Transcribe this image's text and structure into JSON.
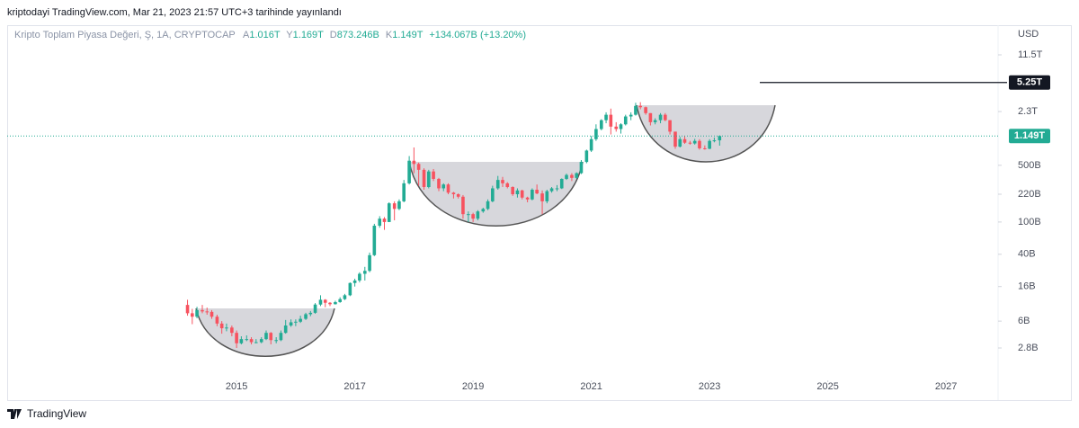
{
  "header": {
    "text": "kriptodayi TradingView.com, Mar 21, 2023 21:57 UTC+3 tarihinde yayınlandı"
  },
  "footer": {
    "brand": "TradingView"
  },
  "chart_data": {
    "type": "candlestick",
    "title": "Kripto Toplam Piyasa Değeri, Ş, 1A, CRYPTOCAP",
    "ohlc_legend": [
      {
        "key": "A",
        "text": "1.016T"
      },
      {
        "key": "Y",
        "text": "1.169T"
      },
      {
        "key": "D",
        "text": "873.246B"
      },
      {
        "key": "K",
        "text": "1.149T"
      }
    ],
    "change_label": "+134.067B (+13.20%)",
    "y_axis_label": "USD",
    "log_y": true,
    "up_color": "#22ab94",
    "down_color": "#f7525f",
    "xlim": [
      2011.12,
      2027.88
    ],
    "xticks": [
      2015,
      2017,
      2019,
      2021,
      2023,
      2025,
      2027
    ],
    "ylim": [
      1.37,
      26700
    ],
    "yticks": [
      {
        "value": 11500,
        "label": "11.5T"
      },
      {
        "value": 2300,
        "label": "2.3T"
      },
      {
        "value": 500,
        "label": "500B"
      },
      {
        "value": 220,
        "label": "220B"
      },
      {
        "value": 100,
        "label": "100B"
      },
      {
        "value": 40,
        "label": "40B"
      },
      {
        "value": 16,
        "label": "16B"
      },
      {
        "value": 6,
        "label": "6B"
      },
      {
        "value": 2.8,
        "label": "2.8B"
      }
    ],
    "horizontal_line": {
      "value": 5250,
      "label": "5.25T"
    },
    "last_price": {
      "value": 1149,
      "label": "1.149T"
    },
    "x": [
      2014.17,
      2014.25,
      2014.33,
      2014.42,
      2014.5,
      2014.58,
      2014.67,
      2014.75,
      2014.83,
      2014.92,
      2015.0,
      2015.08,
      2015.17,
      2015.25,
      2015.33,
      2015.42,
      2015.5,
      2015.58,
      2015.67,
      2015.75,
      2015.83,
      2015.92,
      2016.0,
      2016.08,
      2016.17,
      2016.25,
      2016.33,
      2016.42,
      2016.5,
      2016.58,
      2016.67,
      2016.75,
      2016.83,
      2016.92,
      2017.0,
      2017.08,
      2017.17,
      2017.25,
      2017.33,
      2017.42,
      2017.5,
      2017.58,
      2017.67,
      2017.75,
      2017.83,
      2017.92,
      2018.0,
      2018.08,
      2018.17,
      2018.25,
      2018.33,
      2018.42,
      2018.5,
      2018.58,
      2018.67,
      2018.75,
      2018.83,
      2018.92,
      2019.0,
      2019.08,
      2019.17,
      2019.25,
      2019.33,
      2019.42,
      2019.5,
      2019.58,
      2019.67,
      2019.75,
      2019.83,
      2019.92,
      2020.0,
      2020.08,
      2020.17,
      2020.25,
      2020.33,
      2020.42,
      2020.5,
      2020.58,
      2020.67,
      2020.75,
      2020.83,
      2020.92,
      2021.0,
      2021.08,
      2021.17,
      2021.25,
      2021.33,
      2021.42,
      2021.5,
      2021.58,
      2021.67,
      2021.75,
      2021.83,
      2021.92,
      2022.0,
      2022.08,
      2022.17,
      2022.25,
      2022.33,
      2022.42,
      2022.5,
      2022.58,
      2022.67,
      2022.75,
      2022.83,
      2022.92,
      2023.0,
      2023.08,
      2023.17
    ],
    "open": [
      9.5,
      7.5,
      6.8,
      8.2,
      7.9,
      7.8,
      6.8,
      5.6,
      4.9,
      5.0,
      4.3,
      3.2,
      3.6,
      3.6,
      3.3,
      3.3,
      3.6,
      4.3,
      3.5,
      3.5,
      4.3,
      5.3,
      5.8,
      5.9,
      6.4,
      7.3,
      7.6,
      9.6,
      11.0,
      10.1,
      9.7,
      10.3,
      11.2,
      12.5,
      17.7,
      19,
      23,
      25,
      39,
      90,
      110,
      100,
      170,
      145,
      180,
      300,
      570,
      520,
      440,
      270,
      420,
      340,
      260,
      290,
      230,
      220,
      205,
      125,
      125,
      110,
      135,
      145,
      180,
      260,
      330,
      300,
      270,
      220,
      245,
      200,
      190,
      250,
      225,
      180,
      240,
      260,
      260,
      340,
      380,
      350,
      400,
      550,
      760,
      1050,
      1400,
      1800,
      2100,
      1500,
      1400,
      1600,
      2000,
      2100,
      2700,
      2600,
      2200,
      1700,
      1800,
      2100,
      1800,
      1300,
      850,
      1050,
      950,
      930,
      1000,
      810,
      800,
      1000,
      1016
    ],
    "high": [
      11,
      8.5,
      9,
      9.5,
      8.8,
      8.2,
      7.2,
      6,
      5.6,
      5.3,
      4.6,
      3.9,
      4,
      3.8,
      3.6,
      3.8,
      4.6,
      4.4,
      3.8,
      4.6,
      6.2,
      6.3,
      6.3,
      7,
      7.6,
      8,
      10,
      12.5,
      11.2,
      10.3,
      10.7,
      11.8,
      13,
      18,
      20,
      24,
      28,
      42,
      95,
      118,
      115,
      175,
      180,
      190,
      330,
      650,
      830,
      540,
      460,
      440,
      450,
      350,
      300,
      300,
      235,
      225,
      215,
      135,
      130,
      140,
      150,
      190,
      280,
      370,
      360,
      310,
      275,
      260,
      250,
      205,
      260,
      290,
      245,
      250,
      270,
      285,
      345,
      395,
      400,
      410,
      580,
      780,
      1150,
      1600,
      1850,
      2250,
      2500,
      1700,
      1650,
      2100,
      2250,
      2950,
      3000,
      2650,
      2200,
      1900,
      2200,
      2200,
      1800,
      1300,
      1120,
      1150,
      1000,
      1060,
      1050,
      880,
      1050,
      1100,
      1169
    ],
    "low": [
      7,
      5.5,
      6.5,
      7.5,
      7.2,
      6.4,
      5.2,
      4.2,
      4.5,
      3.9,
      2.8,
      3.1,
      3.4,
      3.1,
      3.2,
      3.2,
      3.5,
      3.1,
      3.2,
      3.4,
      4.2,
      5.1,
      5.2,
      5.7,
      6.2,
      6.9,
      7.4,
      9.2,
      8.9,
      9.2,
      9.6,
      10.1,
      10.9,
      12.2,
      16,
      18,
      19,
      24,
      38,
      85,
      80,
      100,
      105,
      140,
      175,
      290,
      400,
      280,
      250,
      260,
      320,
      240,
      240,
      220,
      195,
      195,
      110,
      100,
      100,
      105,
      130,
      140,
      175,
      250,
      270,
      260,
      210,
      200,
      190,
      175,
      185,
      220,
      125,
      170,
      230,
      240,
      255,
      330,
      320,
      340,
      390,
      530,
      730,
      1000,
      1350,
      1650,
      1200,
      1300,
      1230,
      1550,
      1800,
      2050,
      2450,
      2100,
      1550,
      1600,
      1650,
      1750,
      1200,
      800,
      830,
      920,
      900,
      900,
      780,
      780,
      790,
      960,
      873.246
    ],
    "close": [
      7.5,
      6.8,
      8.2,
      7.9,
      7.8,
      6.8,
      5.6,
      4.9,
      5.0,
      4.3,
      3.2,
      3.6,
      3.6,
      3.3,
      3.3,
      3.6,
      4.3,
      3.5,
      3.5,
      4.3,
      5.3,
      5.8,
      5.9,
      6.4,
      7.3,
      7.6,
      9.6,
      11.0,
      10.1,
      9.7,
      10.3,
      11.2,
      12.5,
      17.7,
      19,
      23,
      25,
      39,
      90,
      110,
      100,
      170,
      145,
      180,
      300,
      570,
      520,
      440,
      270,
      420,
      340,
      260,
      290,
      230,
      220,
      205,
      125,
      125,
      110,
      135,
      145,
      180,
      260,
      330,
      300,
      270,
      220,
      245,
      200,
      190,
      250,
      225,
      180,
      240,
      260,
      260,
      340,
      380,
      350,
      400,
      550,
      760,
      1050,
      1400,
      1800,
      2100,
      1500,
      1400,
      1600,
      2000,
      2100,
      2700,
      2600,
      2200,
      1700,
      1800,
      2100,
      1800,
      1300,
      850,
      1050,
      950,
      930,
      1000,
      810,
      800,
      1000,
      1016,
      1149
    ]
  }
}
